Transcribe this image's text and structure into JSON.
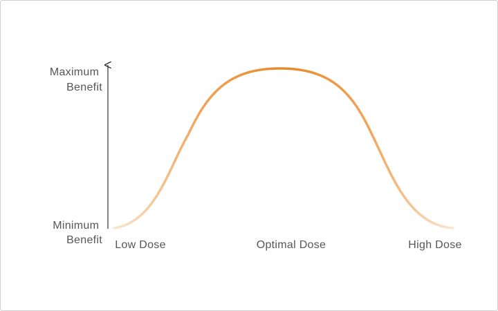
{
  "y_axis": {
    "max_label": [
      "Maximum",
      "Benefit"
    ],
    "min_label": [
      "Minimum",
      "Benefit"
    ]
  },
  "x_axis": {
    "labels": [
      "Low Dose",
      "Optimal Dose",
      "High Dose"
    ]
  }
}
